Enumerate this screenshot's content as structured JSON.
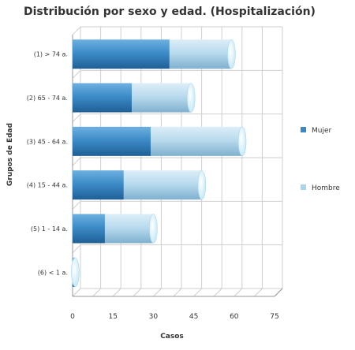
{
  "chart_data": {
    "type": "bar",
    "orientation": "horizontal",
    "stacked": true,
    "title": "Distribución por sexo y edad. (Hospitalización)",
    "xlabel": "Casos",
    "ylabel": "Grupos de Edad",
    "categories": [
      "(1) > 74 a.",
      "(2) 65 - 74 a.",
      "(3) 45 - 64 a.",
      "(4) 15 - 44 a.",
      "(5) 1 - 14 a.",
      "(6) < 1 a."
    ],
    "series": [
      {
        "name": "Mujer",
        "color": "#3b88c4",
        "values": [
          36,
          22,
          29,
          19,
          12,
          1
        ]
      },
      {
        "name": "Hombre",
        "color": "#a9d4ec",
        "values": [
          23,
          22,
          34,
          29,
          18,
          0
        ]
      }
    ],
    "xlim": [
      0,
      75
    ],
    "xticks": [
      "0",
      "15",
      "30",
      "45",
      "60",
      "75"
    ],
    "grid": true,
    "legend_position": "right"
  }
}
